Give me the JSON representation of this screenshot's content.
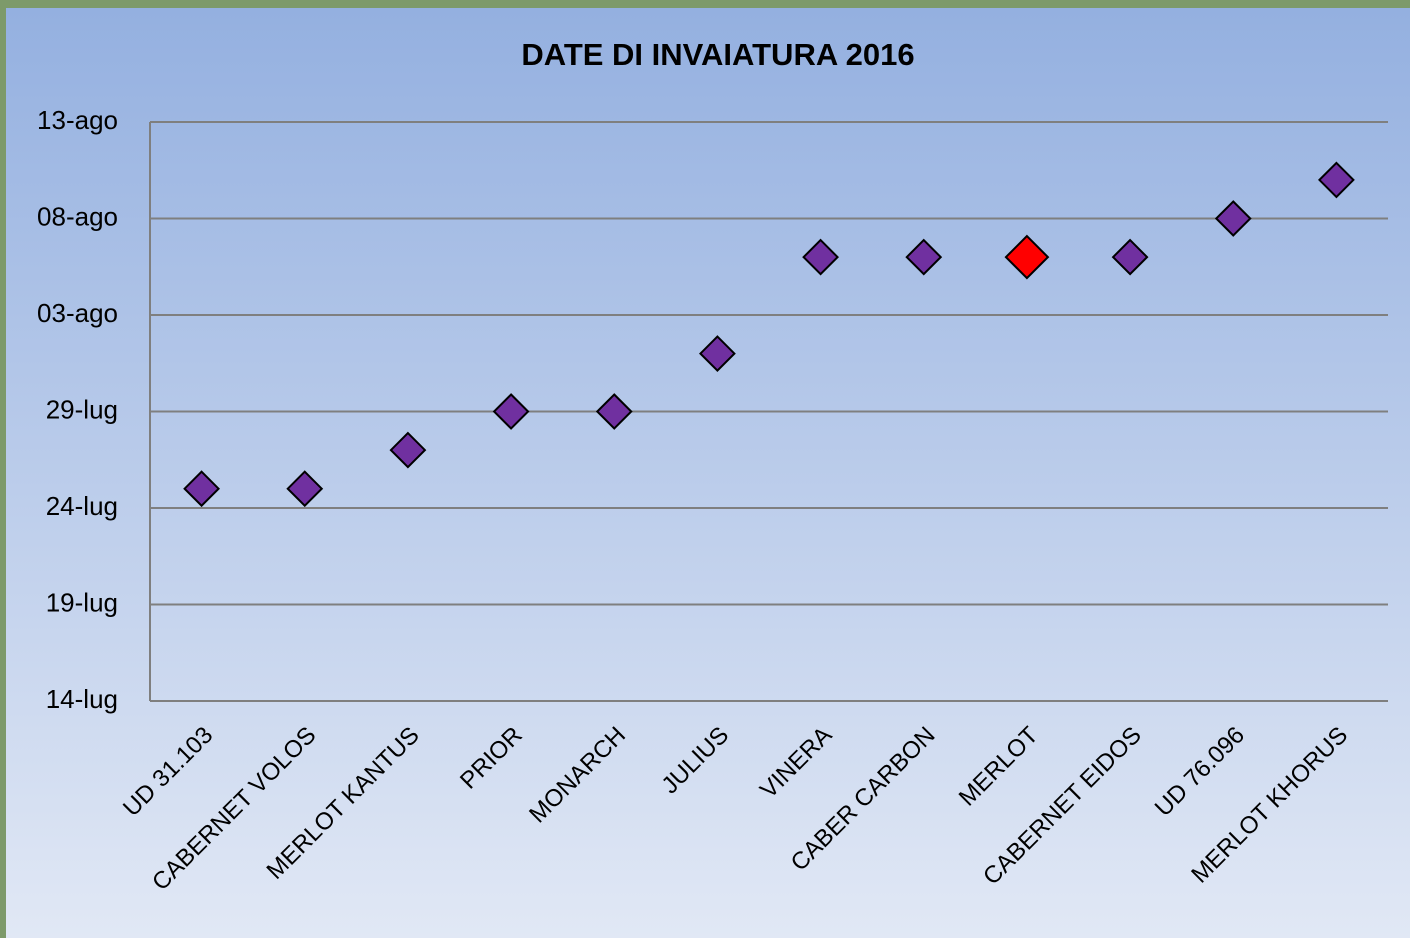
{
  "chart_data": {
    "type": "scatter",
    "title": "DATE DI INVAIATURA  2016",
    "categories": [
      "UD 31.103",
      "CABERNET VOLOS",
      "MERLOT KANTUS",
      "PRIOR",
      "MONARCH",
      "JULIUS",
      "VINERA",
      "CABER CARBON",
      "MERLOT",
      "CABERNET EIDOS",
      "UD 76.096",
      "MERLOT KHORUS"
    ],
    "values": [
      207,
      207,
      209,
      211,
      211,
      214,
      219,
      219,
      219,
      219,
      221,
      223
    ],
    "color": "#7030a0",
    "point_colors": [
      "#7030a0",
      "#7030a0",
      "#7030a0",
      "#7030a0",
      "#7030a0",
      "#7030a0",
      "#7030a0",
      "#7030a0",
      "#ff0000",
      "#7030a0",
      "#7030a0",
      "#7030a0"
    ],
    "ylim": [
      196,
      226
    ],
    "yticks": [
      {
        "value": 196,
        "label": "14-lug"
      },
      {
        "value": 201,
        "label": "19-lug"
      },
      {
        "value": 206,
        "label": "24-lug"
      },
      {
        "value": 211,
        "label": "29-lug"
      },
      {
        "value": 216,
        "label": "03-ago"
      },
      {
        "value": 221,
        "label": "08-ago"
      },
      {
        "value": 226,
        "label": "13-ago"
      }
    ],
    "grid": true
  }
}
